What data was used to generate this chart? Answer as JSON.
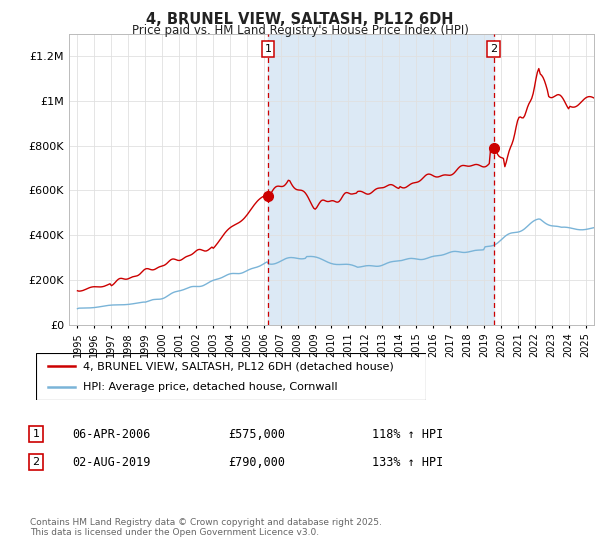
{
  "title": "4, BRUNEL VIEW, SALTASH, PL12 6DH",
  "subtitle": "Price paid vs. HM Land Registry's House Price Index (HPI)",
  "plot_bg_color": "#ffffff",
  "outer_bg_color": "#ffffff",
  "red_line_label": "4, BRUNEL VIEW, SALTASH, PL12 6DH (detached house)",
  "blue_line_label": "HPI: Average price, detached house, Cornwall",
  "legend1_date": "06-APR-2006",
  "legend1_price": "£575,000",
  "legend1_hpi": "118% ↑ HPI",
  "legend2_date": "02-AUG-2019",
  "legend2_price": "£790,000",
  "legend2_hpi": "133% ↑ HPI",
  "footnote": "Contains HM Land Registry data © Crown copyright and database right 2025.\nThis data is licensed under the Open Government Licence v3.0.",
  "marker1_x": 2006.25,
  "marker1_y": 575000,
  "marker2_x": 2019.58,
  "marker2_y": 790000,
  "vline1_x": 2006.25,
  "vline2_x": 2019.58,
  "ylim": [
    0,
    1300000
  ],
  "xlim_start": 1994.5,
  "xlim_end": 2025.5,
  "yticks": [
    0,
    200000,
    400000,
    600000,
    800000,
    1000000,
    1200000
  ],
  "ytick_labels": [
    "£0",
    "£200K",
    "£400K",
    "£600K",
    "£800K",
    "£1M",
    "£1.2M"
  ],
  "xtick_years": [
    1995,
    1996,
    1997,
    1998,
    1999,
    2000,
    2001,
    2002,
    2003,
    2004,
    2005,
    2006,
    2007,
    2008,
    2009,
    2010,
    2011,
    2012,
    2013,
    2014,
    2015,
    2016,
    2017,
    2018,
    2019,
    2020,
    2021,
    2022,
    2023,
    2024,
    2025
  ],
  "red_color": "#cc0000",
  "blue_color": "#7ab4d8",
  "span_color": "#dce9f5"
}
